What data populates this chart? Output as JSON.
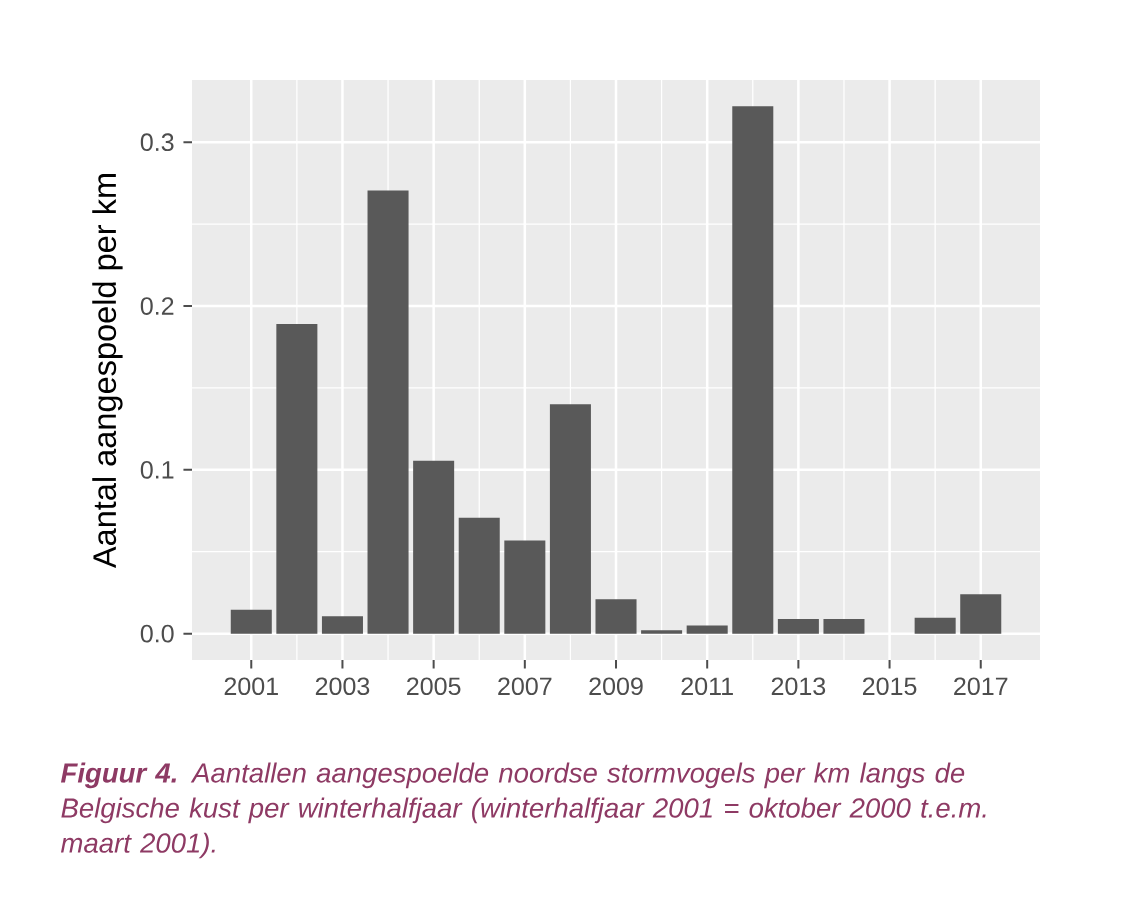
{
  "chart_data": {
    "type": "bar",
    "x": [
      2001,
      2002,
      2003,
      2004,
      2005,
      2006,
      2007,
      2008,
      2009,
      2010,
      2011,
      2012,
      2013,
      2014,
      2015,
      2016,
      2017
    ],
    "values": [
      0.0146,
      0.189,
      0.0106,
      0.2706,
      0.1056,
      0.0708,
      0.0569,
      0.14,
      0.021,
      0.002,
      0.005,
      0.322,
      0.009,
      0.009,
      null,
      0.0097,
      0.024
    ],
    "color": "#595959",
    "ylabel": "Aantal aangespoeld per km",
    "xlim": [
      1999.7,
      2018.3
    ],
    "xticks": [
      2001,
      2003,
      2005,
      2007,
      2009,
      2011,
      2013,
      2015,
      2017
    ],
    "ylim": [
      -0.0161,
      0.338
    ],
    "yticks": [
      {
        "value": 0,
        "label": "0.0"
      },
      {
        "value": 0.1,
        "label": "0.1"
      },
      {
        "value": 0.2,
        "label": "0.2"
      },
      {
        "value": 0.3,
        "label": "0.3"
      }
    ],
    "grid": true,
    "annotations": [
      "**Figuur 4.**  Aantallen aangespoelde noordse stormvogels per km langs de Belgische kust per winterhalfjaar (winterhalfjaar 2001 = oktober 2000 t.e.m. maart 2001)."
    ]
  }
}
